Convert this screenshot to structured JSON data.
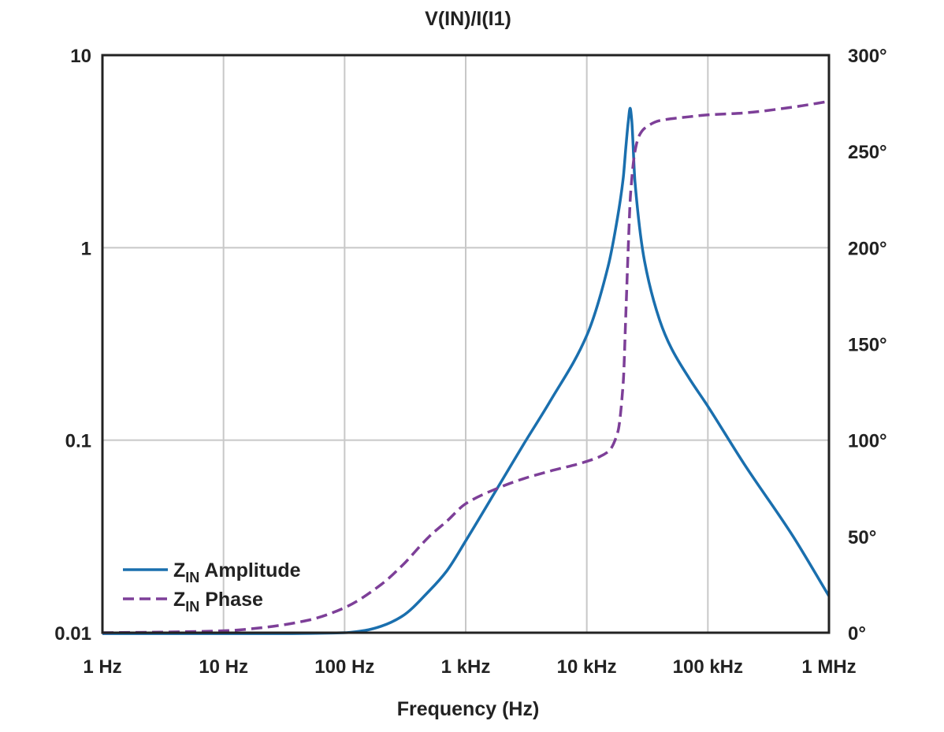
{
  "chart_data": {
    "type": "line",
    "title": "V(IN)/I(I1)",
    "xlabel": "Frequency (Hz)",
    "ylabel": "",
    "ylabel_right": "",
    "xscale": "log",
    "yscale": "log",
    "xlim": [
      1,
      1000000
    ],
    "ylim": [
      0.01,
      10
    ],
    "ylim_right": [
      0,
      300
    ],
    "grid": true,
    "legend_position": "bottom-left",
    "x_ticks": [
      "1 Hz",
      "10 Hz",
      "100 Hz",
      "1 kHz",
      "10 kHz",
      "100 kHz",
      "1 MHz"
    ],
    "y_ticks_left": [
      "10",
      "1",
      "0.1",
      "0.01"
    ],
    "y_ticks_right": [
      "300°",
      "250°",
      "200°",
      "150°",
      "100°",
      "50°",
      "0°"
    ],
    "series": [
      {
        "name_main": "Z",
        "name_sub": "IN",
        "name_rest": " Amplitude",
        "axis": "left",
        "color": "#1a6fae",
        "dash": "solid",
        "x": [
          1,
          10,
          31.6,
          100,
          150,
          200,
          300,
          500,
          700,
          1000,
          2000,
          3000,
          5000,
          10000,
          15000,
          18000,
          20000,
          21000,
          22000,
          22800,
          23500,
          25000,
          30000,
          40000,
          50000,
          70000,
          100000,
          200000,
          500000,
          1000000
        ],
        "y": [
          0.0099,
          0.0099,
          0.0099,
          0.01,
          0.0103,
          0.0108,
          0.0122,
          0.0165,
          0.021,
          0.03,
          0.062,
          0.095,
          0.16,
          0.35,
          0.8,
          1.45,
          2.3,
          3.3,
          4.5,
          5.3,
          4.6,
          2.2,
          0.85,
          0.42,
          0.3,
          0.21,
          0.15,
          0.075,
          0.032,
          0.0155
        ]
      },
      {
        "name_main": "Z",
        "name_sub": "IN",
        "name_rest": " Phase",
        "axis": "right",
        "color": "#7d3f98",
        "dash": "dashed",
        "x": [
          1,
          3,
          10,
          20,
          50,
          100,
          200,
          300,
          500,
          700,
          1000,
          2000,
          3000,
          5000,
          10000,
          15000,
          18000,
          20000,
          21000,
          22000,
          23000,
          25000,
          27000,
          30000,
          40000,
          70000,
          100000,
          200000,
          500000,
          1000000
        ],
        "y": [
          0,
          0.3,
          1,
          2.5,
          6.5,
          13,
          25,
          35,
          50,
          58,
          67,
          76,
          80,
          84,
          89,
          94,
          104,
          130,
          165,
          200,
          228,
          250,
          258,
          262,
          266,
          268,
          269,
          270,
          273,
          276
        ]
      }
    ]
  }
}
